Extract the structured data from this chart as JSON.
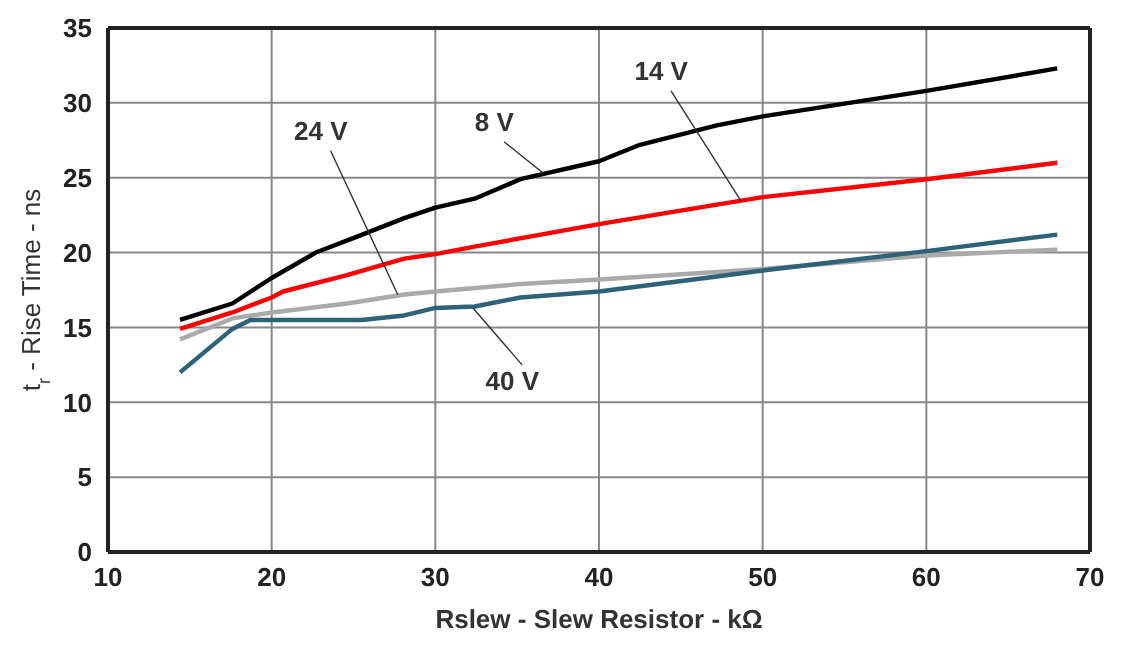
{
  "chart_data": {
    "type": "line",
    "xlabel": "Rslew - Slew Resistor - kΩ",
    "ylabel": "t$_{r}$ - Rise Time - ns",
    "xlim": [
      10,
      70
    ],
    "xticks": [
      10,
      20,
      30,
      40,
      50,
      60,
      70
    ],
    "ylim": [
      0,
      35
    ],
    "yticks": [
      0,
      5,
      10,
      15,
      20,
      25,
      30,
      35
    ],
    "grid": true,
    "marker": "none",
    "line_style": "solid",
    "series": [
      {
        "name": "8 V",
        "color": "#000000",
        "x": [
          14.4,
          17.6,
          20,
          22.7,
          25.3,
          28.1,
          30,
          32.4,
          35.2,
          40,
          42.5,
          47.2,
          50,
          60,
          68
        ],
        "values": [
          15.5,
          16.6,
          18.3,
          20,
          21.1,
          22.3,
          23,
          23.6,
          24.9,
          26.1,
          27.2,
          28.5,
          29.1,
          30.8,
          32.3
        ]
      },
      {
        "name": "14 V",
        "color": "#ff0000",
        "x": [
          14.4,
          17.6,
          20,
          20.7,
          24.6,
          28.1,
          30,
          32.4,
          40,
          47.2,
          50,
          60,
          68
        ],
        "values": [
          14.9,
          16,
          17,
          17.4,
          18.5,
          19.6,
          19.9,
          20.4,
          21.9,
          23.2,
          23.7,
          24.9,
          26
        ]
      },
      {
        "name": "24 V",
        "color": "#aaaaaa",
        "x": [
          14.4,
          17.6,
          20,
          24.6,
          28.1,
          30,
          35.2,
          40,
          47.2,
          50,
          60,
          68
        ],
        "values": [
          14.2,
          15.6,
          16,
          16.6,
          17.2,
          17.4,
          17.9,
          18.2,
          18.7,
          18.9,
          19.8,
          20.2
        ]
      },
      {
        "name": "40 V",
        "color": "#2e6278",
        "x": [
          14.4,
          17.6,
          18.7,
          20,
          25.5,
          28.1,
          30,
          32.4,
          35.2,
          40,
          47.2,
          50,
          60,
          68
        ],
        "values": [
          12,
          14.9,
          15.5,
          15.5,
          15.5,
          15.8,
          16.3,
          16.4,
          17,
          17.4,
          18.4,
          18.8,
          20.1,
          21.2
        ]
      }
    ]
  }
}
